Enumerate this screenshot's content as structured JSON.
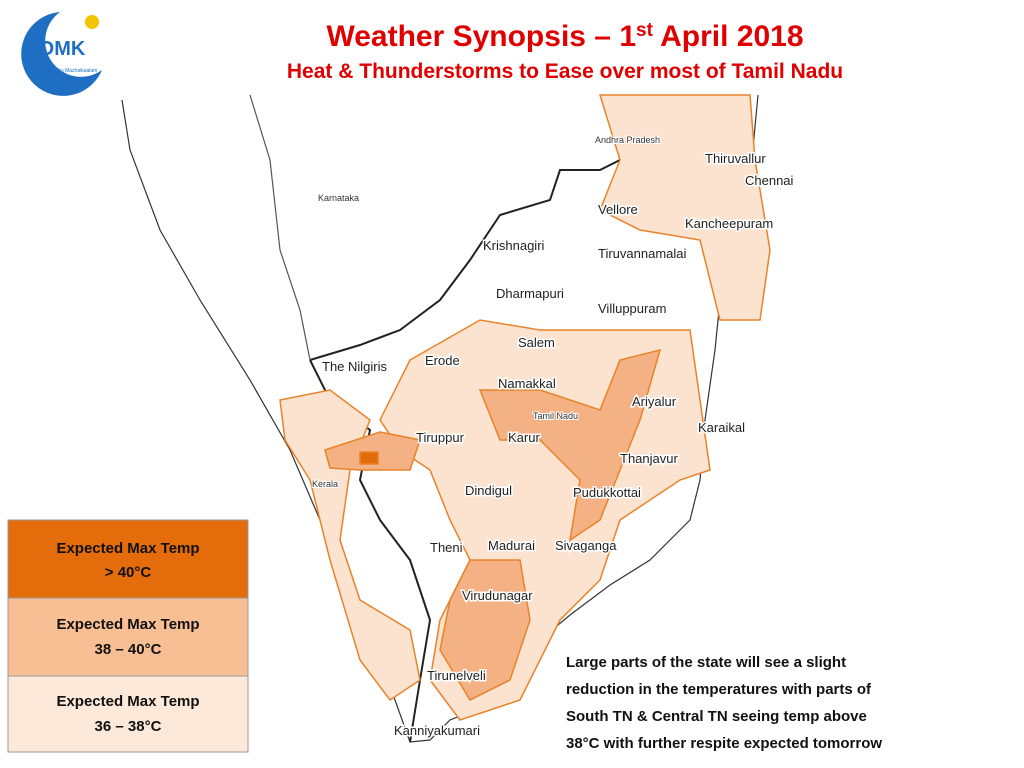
{
  "header": {
    "title": {
      "before": "Weather Synopsis – 1",
      "sup": "st",
      "after": " April 2018"
    },
    "subtitle": "Heat & Thunderstorms to Ease over most of Tamil Nadu"
  },
  "logo": {
    "name": "OMK",
    "tagline": "Chennaiyil Oru Mazhaikaalam"
  },
  "map": {
    "labels": [
      "Andhra Pradesh",
      "Karnataka",
      "Thiruvallur",
      "Chennai",
      "Vellore",
      "Kancheepuram",
      "Krishnagiri",
      "Tiruvannamalai",
      "Dharmapuri",
      "Villuppuram",
      "Salem",
      "The Nilgiris",
      "Erode",
      "Namakkal",
      "Ariyalur",
      "Tamil Nadu",
      "Karur",
      "Tiruppur",
      "Karaikal",
      "Thanjavur",
      "Kerala",
      "Dindigul",
      "Pudukkottai",
      "Theni",
      "Madurai",
      "Sivaganga",
      "Virudunagar",
      "Tirunelveli",
      "Kanniyakumari"
    ]
  },
  "legend": [
    {
      "line1": "Expected Max Temp",
      "line2": "> 40°C"
    },
    {
      "line1": "Expected Max Temp",
      "line2": "38 – 40°C"
    },
    {
      "line1": "Expected Max Temp",
      "line2": "36 – 38°C"
    }
  ],
  "note": [
    "Large parts of the state will see a slight",
    "reduction in the temperatures with parts of",
    "South TN & Central TN seeing temp above",
    "38°C with further respite expected tomorrow"
  ]
}
